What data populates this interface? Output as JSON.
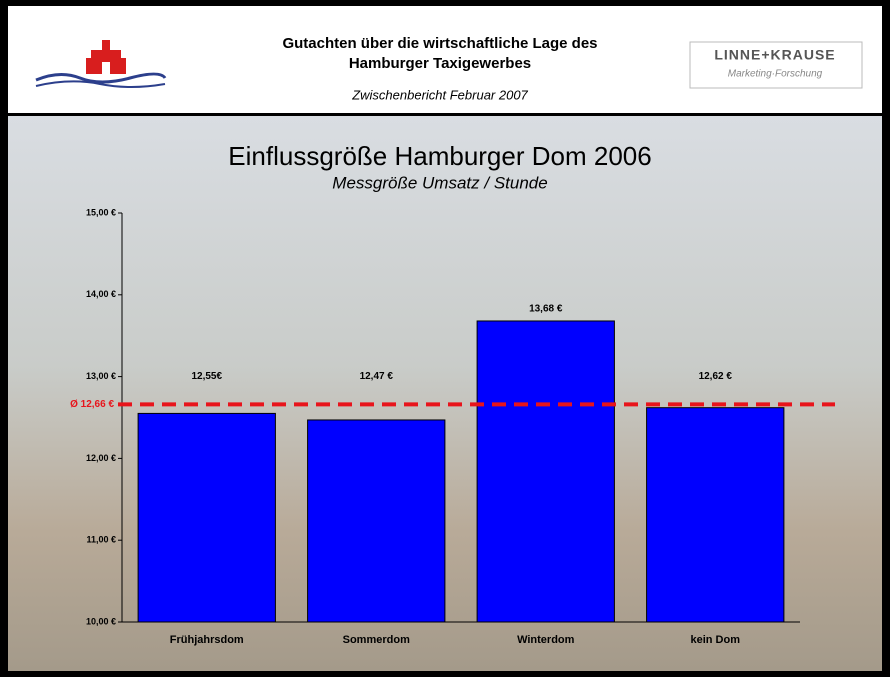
{
  "header": {
    "title_line1": "Gutachten über die wirtschaftliche Lage des",
    "title_line2": "Hamburger Taxigewerbes",
    "subtitle": "Zwischenbericht Februar 2007",
    "logo_name": "LINNE+KRAUSE",
    "logo_tagline": "Marketing·Forschung"
  },
  "chart_data": {
    "type": "bar",
    "title": "Einflussgröße Hamburger Dom 2006",
    "subtitle": "Messgröße Umsatz / Stunde",
    "categories": [
      "Frühjahrsdom",
      "Sommerdom",
      "Winterdom",
      "kein Dom"
    ],
    "values": [
      12.55,
      12.47,
      13.68,
      12.62
    ],
    "value_labels": [
      "12,55€",
      "12,47 €",
      "13,68 €",
      "12,62 €"
    ],
    "color": "#0000ff",
    "ylim": [
      10,
      15
    ],
    "yticks": [
      {
        "value": 10,
        "label": "10,00 €"
      },
      {
        "value": 11,
        "label": "11,00 €"
      },
      {
        "value": 12,
        "label": "12,00 €"
      },
      {
        "value": 13,
        "label": "13,00 €"
      },
      {
        "value": 14,
        "label": "14,00 €"
      },
      {
        "value": 15,
        "label": "15,00 €"
      }
    ],
    "reference_line": {
      "value": 12.66,
      "label": "Ø 12,66 €",
      "color": "#e8141b"
    }
  }
}
